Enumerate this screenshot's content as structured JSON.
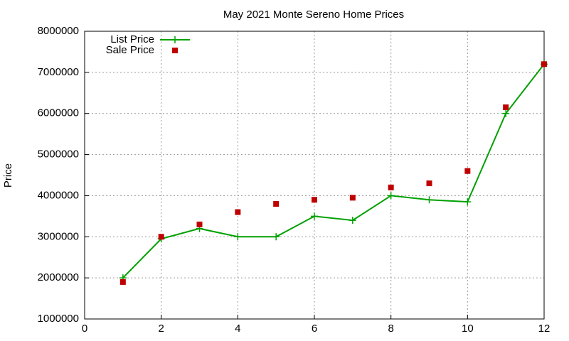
{
  "chart_data": {
    "type": "line",
    "title": "May 2021 Monte Sereno Home Prices",
    "y_label": "Price",
    "x": [
      1,
      2,
      3,
      4,
      5,
      6,
      7,
      8,
      9,
      10,
      11,
      12
    ],
    "series": [
      {
        "name": "List Price",
        "color": "#00a000",
        "line": true,
        "marker": "plus",
        "values": [
          2000000,
          2950000,
          3200000,
          3000000,
          3000000,
          3500000,
          3400000,
          4000000,
          3900000,
          3850000,
          6000000,
          7200000
        ]
      },
      {
        "name": "Sale Price",
        "color": "#c00000",
        "line": false,
        "marker": "square",
        "values": [
          1900000,
          3000000,
          3300000,
          3600000,
          3800000,
          3900000,
          3950000,
          4200000,
          4300000,
          4600000,
          6150000,
          7200000
        ]
      }
    ],
    "xlim": [
      0,
      12
    ],
    "xticks": [
      0,
      2,
      4,
      6,
      8,
      10,
      12
    ],
    "ylim": [
      1000000,
      8000000
    ],
    "yticks": [
      1000000,
      2000000,
      3000000,
      4000000,
      5000000,
      6000000,
      7000000,
      8000000
    ],
    "grid": true,
    "legend": "top-left"
  }
}
